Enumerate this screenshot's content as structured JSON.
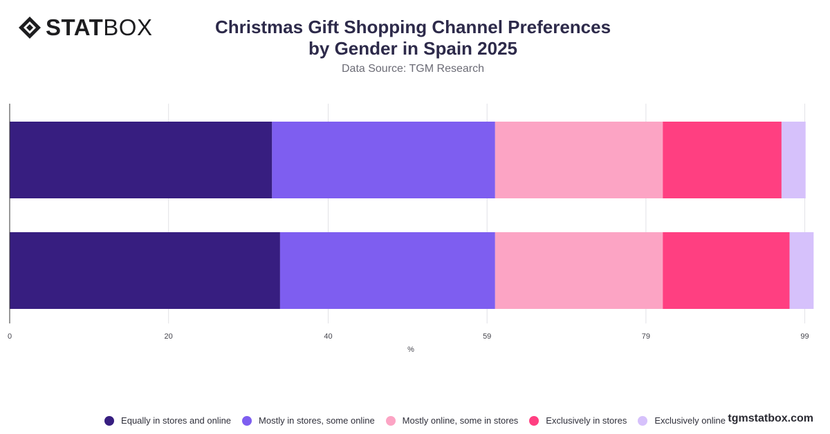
{
  "brand": {
    "name_bold": "STAT",
    "name_light": "BOX",
    "logo_icon": "diamond-logo-icon"
  },
  "watermark": "tgmstatbox.com",
  "chart_data": {
    "type": "bar",
    "orientation": "horizontal",
    "stacked": true,
    "title": "Christmas Gift Shopping Channel Preferences by Gender in Spain 2025",
    "subtitle": "Data Source: TGM Research",
    "xlabel": "%",
    "ylabel": "",
    "xlim": [
      0,
      100
    ],
    "x_ticks": [
      "0",
      "20",
      "40",
      "59",
      "79",
      "99"
    ],
    "x_tick_values": [
      0,
      19.8,
      39.7,
      59.5,
      79.3,
      99.1
    ],
    "grid": true,
    "legend_position": "bottom",
    "categories": [
      "",
      ""
    ],
    "series": [
      {
        "name": "Equally in stores and online",
        "color": "#371e80",
        "values": [
          32.7,
          33.7
        ]
      },
      {
        "name": "Mostly in stores, some online",
        "color": "#7e5ef0",
        "values": [
          27.8,
          26.8
        ]
      },
      {
        "name": "Mostly online, some in stores",
        "color": "#fca4c4",
        "values": [
          20.9,
          20.9
        ]
      },
      {
        "name": "Exclusively in stores",
        "color": "#ff3f81",
        "values": [
          14.8,
          15.8
        ]
      },
      {
        "name": "Exclusively online",
        "color": "#d6c1fb",
        "values": [
          3.0,
          3.0
        ]
      }
    ]
  }
}
